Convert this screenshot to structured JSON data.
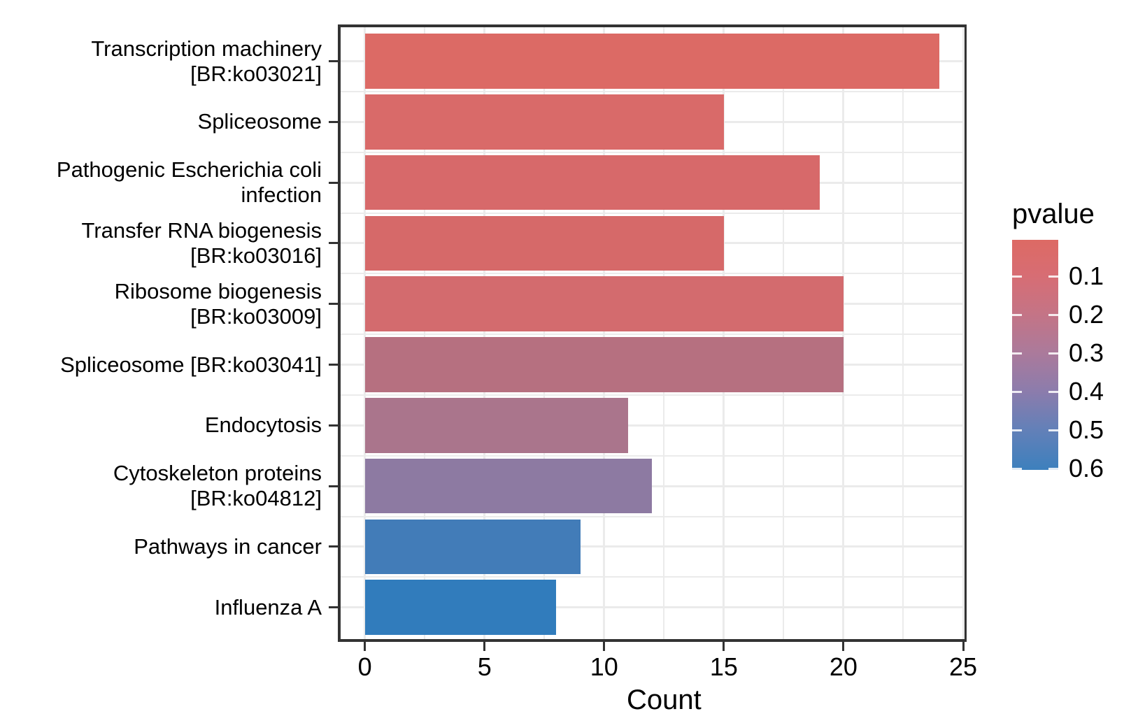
{
  "chart_data": {
    "type": "bar",
    "orientation": "horizontal",
    "title": "",
    "xlabel": "Count",
    "ylabel": "",
    "xlim": [
      0,
      25
    ],
    "x_ticks": [
      "0",
      "5",
      "10",
      "15",
      "20",
      "25"
    ],
    "x_tick_values": [
      0,
      5,
      10,
      15,
      20,
      25
    ],
    "x_minor_tick_values": [
      2.5,
      7.5,
      12.5,
      17.5,
      22.5
    ],
    "grid": {
      "major": true,
      "minor": true,
      "color": "#ebebeb"
    },
    "categories": [
      "Transcription machinery [BR:ko03021]",
      "Spliceosome",
      "Pathogenic Escherichia coli infection",
      "Transfer RNA biogenesis [BR:ko03016]",
      "Ribosome biogenesis [BR:ko03009]",
      "Spliceosome [BR:ko03041]",
      "Endocytosis",
      "Cytoskeleton proteins [BR:ko04812]",
      "Pathways in cancer",
      "Influenza A"
    ],
    "category_label_lines": [
      [
        "Transcription machinery",
        "[BR:ko03021]"
      ],
      [
        "Spliceosome"
      ],
      [
        "Pathogenic Escherichia coli",
        "infection"
      ],
      [
        "Transfer RNA biogenesis",
        "[BR:ko03016]"
      ],
      [
        "Ribosome biogenesis",
        "[BR:ko03009]"
      ],
      [
        "Spliceosome [BR:ko03041]"
      ],
      [
        "Endocytosis"
      ],
      [
        "Cytoskeleton proteins",
        "[BR:ko04812]"
      ],
      [
        "Pathways in cancer"
      ],
      [
        "Influenza A"
      ]
    ],
    "values": [
      24,
      15,
      19,
      15,
      20,
      20,
      11,
      12,
      9,
      8
    ],
    "bar_colors": [
      "#dc6a65",
      "#d96a69",
      "#d7696a",
      "#d66969",
      "#d36b6e",
      "#b67080",
      "#aa758c",
      "#8d7aa2",
      "#427cb8",
      "#317cbc"
    ],
    "legend": {
      "title": "pvalue",
      "tick_labels": [
        "0.1",
        "0.2",
        "0.3",
        "0.4",
        "0.5",
        "0.6"
      ],
      "gradient_stops": [
        [
          "0%",
          "#dd6a64"
        ],
        [
          "15.7%",
          "#d76d74"
        ],
        [
          "32.4%",
          "#c47486"
        ],
        [
          "49.1%",
          "#ab7a9b"
        ],
        [
          "65.8%",
          "#8c7cac"
        ],
        [
          "82.4%",
          "#6380b8"
        ],
        [
          "100%",
          "#3d80bd"
        ]
      ]
    }
  },
  "style": {
    "axis_line_color": "#333333",
    "tick_color": "#333333",
    "text_color": "#000000",
    "panel_background": "#ffffff",
    "figure_background": "#ffffff"
  }
}
